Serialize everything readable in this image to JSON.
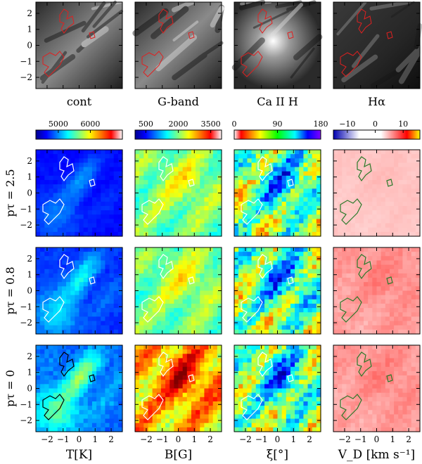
{
  "chart_data": {
    "type": "heatmap",
    "layout": "4x4 grid of panels with contours",
    "axes": {
      "xlim": [
        -2.7,
        2.7
      ],
      "ylim": [
        -2.7,
        2.7
      ],
      "xticks": [
        -2,
        -1,
        0,
        1,
        2
      ],
      "yticks": [
        -2,
        -1,
        0,
        1,
        2
      ]
    },
    "top_row": {
      "panel_titles": [
        "cont",
        "G-band",
        "Ca II H",
        "Hα"
      ],
      "contour_color": "#e02020"
    },
    "colorbars": [
      {
        "ticks": [
          "5000",
          "6000"
        ],
        "tick_values": [
          5000,
          6000
        ],
        "range": [
          4300,
          7000
        ],
        "colormap": "jet"
      },
      {
        "ticks": [
          "500",
          "2000",
          "3500"
        ],
        "tick_values": [
          500,
          2000,
          3500
        ],
        "range": [
          0,
          4000
        ],
        "colormap": "jet"
      },
      {
        "ticks": [
          "0",
          "90",
          "180"
        ],
        "tick_values": [
          0,
          90,
          180
        ],
        "range": [
          0,
          180
        ],
        "colormap": "rainbow-reverse"
      },
      {
        "ticks": [
          "−10",
          "0",
          "10"
        ],
        "tick_values": [
          -10,
          0,
          10
        ],
        "range": [
          -15,
          16
        ],
        "colormap": "blue-white-red"
      }
    ],
    "row_labels": [
      "pτ = 2.5",
      "pτ = 0.8",
      "pτ = 0"
    ],
    "column_xlabels": [
      "T[K]",
      "B[G]",
      "ξ[°]",
      "V_D [km s⁻¹]"
    ],
    "contour_colors": {
      "temperature_col": "#ffffff",
      "field_col": "#ffffff",
      "inclination_col": "#ffffff",
      "velocity_col": "#2a7a2a"
    }
  }
}
